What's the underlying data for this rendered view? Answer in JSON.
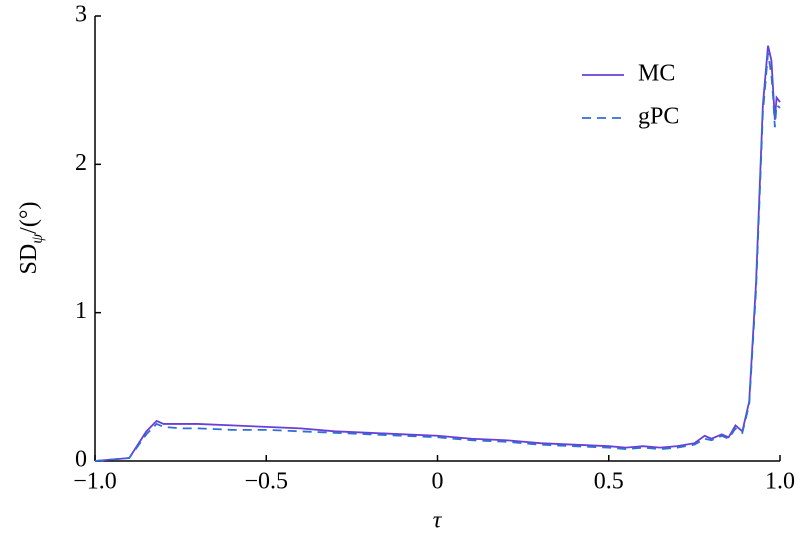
{
  "chart_data": {
    "type": "line",
    "xlabel": "τ",
    "ylabel": "SD",
    "ylabel_subscript": "ψ",
    "ylabel_suffix": "/(°)",
    "xlim": [
      -1.0,
      1.0
    ],
    "xticks": [
      {
        "value": -1.0,
        "label": "−1.0"
      },
      {
        "value": -0.5,
        "label": "−0.5"
      },
      0,
      0.5,
      {
        "value": 1.0,
        "label": "1.0"
      }
    ],
    "ylim": [
      0,
      3
    ],
    "yticks": [
      0,
      1,
      2,
      3
    ],
    "legend": "upper right",
    "series": [
      {
        "name": "MC",
        "color": "#6a3fd8",
        "dash": false,
        "x": [
          -1.0,
          -0.95,
          -0.9,
          -0.85,
          -0.82,
          -0.8,
          -0.75,
          -0.7,
          -0.6,
          -0.5,
          -0.4,
          -0.3,
          -0.2,
          -0.1,
          0,
          0.1,
          0.2,
          0.3,
          0.4,
          0.5,
          0.55,
          0.6,
          0.65,
          0.7,
          0.75,
          0.78,
          0.8,
          0.83,
          0.85,
          0.87,
          0.89,
          0.91,
          0.93,
          0.95,
          0.965,
          0.975,
          0.98,
          0.985,
          0.99,
          1.0
        ],
        "values": [
          0.0,
          0.01,
          0.02,
          0.2,
          0.27,
          0.25,
          0.25,
          0.25,
          0.24,
          0.23,
          0.22,
          0.2,
          0.19,
          0.18,
          0.17,
          0.15,
          0.14,
          0.12,
          0.11,
          0.1,
          0.09,
          0.1,
          0.09,
          0.1,
          0.12,
          0.17,
          0.15,
          0.18,
          0.16,
          0.24,
          0.2,
          0.4,
          1.2,
          2.4,
          2.8,
          2.7,
          2.5,
          2.3,
          2.45,
          2.42
        ]
      },
      {
        "name": "gPC",
        "color": "#2f6fd6",
        "dash": true,
        "x": [
          -1.0,
          -0.95,
          -0.9,
          -0.85,
          -0.82,
          -0.8,
          -0.75,
          -0.7,
          -0.6,
          -0.5,
          -0.4,
          -0.3,
          -0.2,
          -0.1,
          0,
          0.1,
          0.2,
          0.3,
          0.4,
          0.5,
          0.55,
          0.6,
          0.65,
          0.7,
          0.75,
          0.78,
          0.8,
          0.83,
          0.85,
          0.87,
          0.89,
          0.91,
          0.93,
          0.95,
          0.965,
          0.975,
          0.98,
          0.985,
          0.99,
          1.0
        ],
        "values": [
          0.0,
          0.01,
          0.02,
          0.18,
          0.25,
          0.23,
          0.22,
          0.22,
          0.21,
          0.21,
          0.2,
          0.19,
          0.18,
          0.17,
          0.16,
          0.14,
          0.13,
          0.11,
          0.1,
          0.09,
          0.08,
          0.09,
          0.08,
          0.09,
          0.11,
          0.15,
          0.14,
          0.17,
          0.15,
          0.22,
          0.19,
          0.38,
          1.15,
          2.35,
          2.75,
          2.6,
          2.45,
          2.25,
          2.4,
          2.38
        ]
      }
    ]
  }
}
